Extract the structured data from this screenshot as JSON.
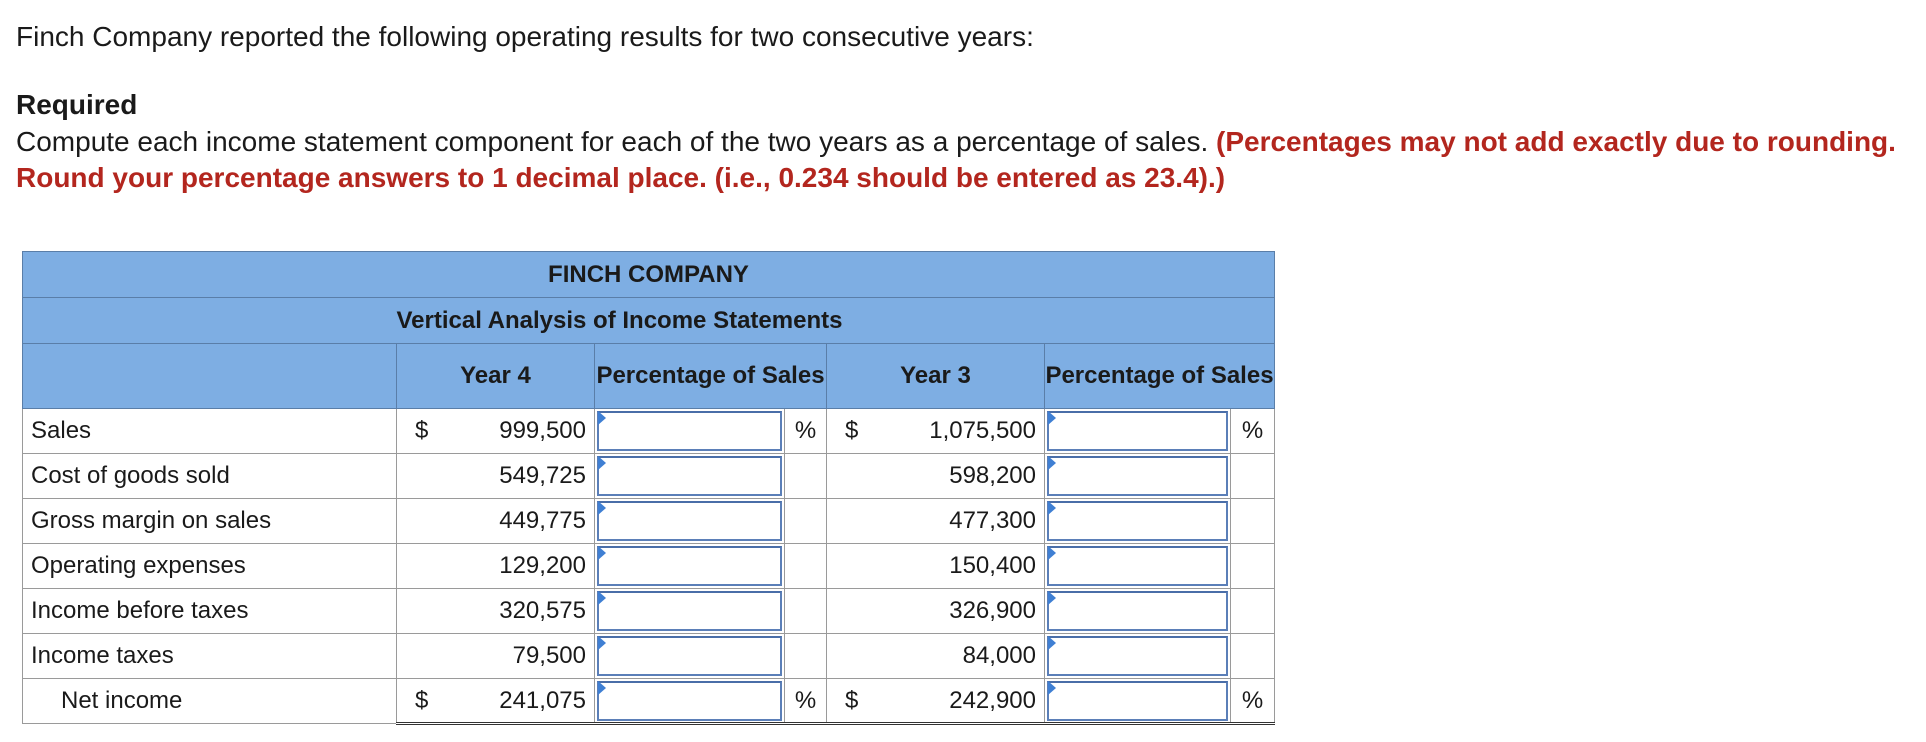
{
  "intro": "Finch Company reported the following operating results for two consecutive years:",
  "required": {
    "heading": "Required",
    "text": "Compute each income statement component for each of the two years as a percentage of sales.",
    "emphasis": "(Percentages may not add exactly due to rounding. Round your percentage answers to 1 decimal place. (i.e., 0.234 should be entered as 23.4).)"
  },
  "table": {
    "company": "FINCH COMPANY",
    "subtitle": "Vertical Analysis of Income Statements",
    "columns": {
      "year4": "Year 4",
      "pct4": "Percentage of Sales",
      "year3": "Year 3",
      "pct3": "Percentage of Sales"
    },
    "rows": [
      {
        "label": "Sales",
        "currency4": "$",
        "year4": "999,500",
        "pct_symbol4": "%",
        "currency3": "$",
        "year3": "1,075,500",
        "pct_symbol3": "%",
        "pct4_value": "",
        "pct3_value": ""
      },
      {
        "label": "Cost of goods sold",
        "currency4": "",
        "year4": "549,725",
        "pct_symbol4": "",
        "currency3": "",
        "year3": "598,200",
        "pct_symbol3": "",
        "pct4_value": "",
        "pct3_value": ""
      },
      {
        "label": "Gross margin on sales",
        "currency4": "",
        "year4": "449,775",
        "pct_symbol4": "",
        "currency3": "",
        "year3": "477,300",
        "pct_symbol3": "",
        "pct4_value": "",
        "pct3_value": ""
      },
      {
        "label": "Operating expenses",
        "currency4": "",
        "year4": "129,200",
        "pct_symbol4": "",
        "currency3": "",
        "year3": "150,400",
        "pct_symbol3": "",
        "pct4_value": "",
        "pct3_value": ""
      },
      {
        "label": "Income before taxes",
        "currency4": "",
        "year4": "320,575",
        "pct_symbol4": "",
        "currency3": "",
        "year3": "326,900",
        "pct_symbol3": "",
        "pct4_value": "",
        "pct3_value": ""
      },
      {
        "label": "Income taxes",
        "currency4": "",
        "year4": "79,500",
        "pct_symbol4": "",
        "currency3": "",
        "year3": "84,000",
        "pct_symbol3": "",
        "pct4_value": "",
        "pct3_value": ""
      },
      {
        "label": "Net income",
        "currency4": "$",
        "year4": "241,075",
        "pct_symbol4": "%",
        "currency3": "$",
        "year3": "242,900",
        "pct_symbol3": "%",
        "pct4_value": "",
        "pct3_value": ""
      }
    ]
  },
  "colors": {
    "header_bg": "#7eaee3",
    "emphasis": "#b3261e",
    "input_border": "#5b7fb8",
    "marker": "#3f7fd3"
  }
}
